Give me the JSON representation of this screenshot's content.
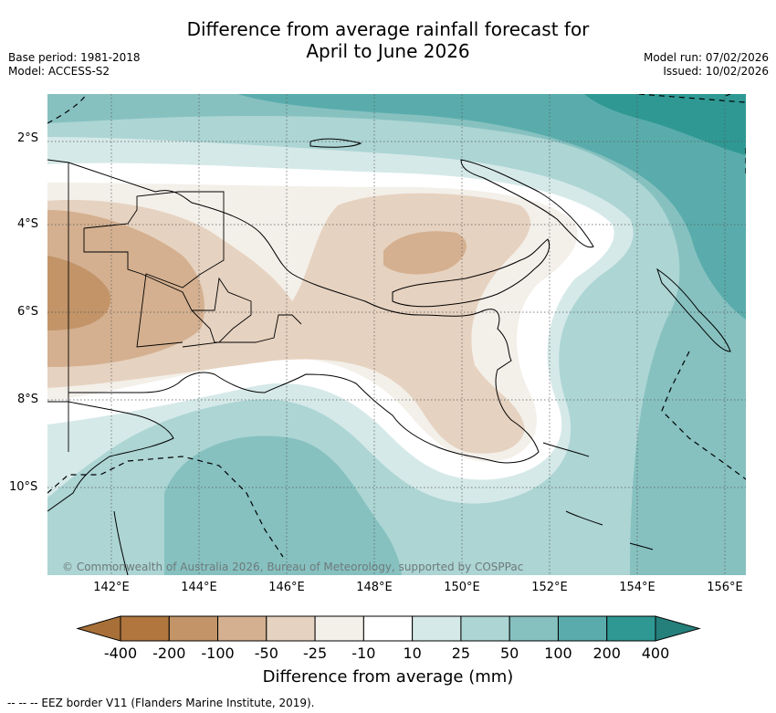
{
  "title_line1": "Difference from average rainfall forecast for",
  "title_line2": "April to June 2026",
  "meta_left": [
    "Base period: 1981-2018",
    "Model: ACCESS-S2"
  ],
  "meta_right": [
    "Model run: 07/02/2026",
    "Issued: 10/02/2026"
  ],
  "copyright": "© Commonwealth of Australia 2026, Bureau of Meteorology, supported by COSPPac",
  "latitude_labels": [
    "2°S",
    "4°S",
    "6°S",
    "8°S",
    "10°S"
  ],
  "longitude_labels": [
    "142°E",
    "144°E",
    "146°E",
    "148°E",
    "150°E",
    "152°E",
    "154°E",
    "156°E"
  ],
  "colorbar": {
    "labels": [
      "-400",
      "-200",
      "-100",
      "-50",
      "-25",
      "-10",
      "10",
      "25",
      "50",
      "100",
      "200",
      "400"
    ],
    "colors": [
      "#a87038",
      "#b0763e",
      "#c29468",
      "#d4b090",
      "#e6d2c0",
      "#f3efe9",
      "#ffffff",
      "#d5e9e8",
      "#acd5d4",
      "#86c1c0",
      "#5aacac",
      "#2f9893",
      "#257f7b"
    ],
    "title": "Difference from average (mm)"
  },
  "footnote": "-- -- -- EEZ border V11 (Flanders Marine Institute, 2019).",
  "map_colors": {
    "ocean_base": "#acd5d4",
    "teal_mid": "#86c1c0",
    "teal_dark": "#5aacac",
    "teal_darkest": "#2f9893",
    "teal_light": "#d5e9e8",
    "neutral": "#ffffff",
    "tan_lightest": "#f3efe9",
    "tan_light": "#e6d2c0",
    "tan_mid": "#d4b090",
    "tan_dark": "#c29468"
  }
}
